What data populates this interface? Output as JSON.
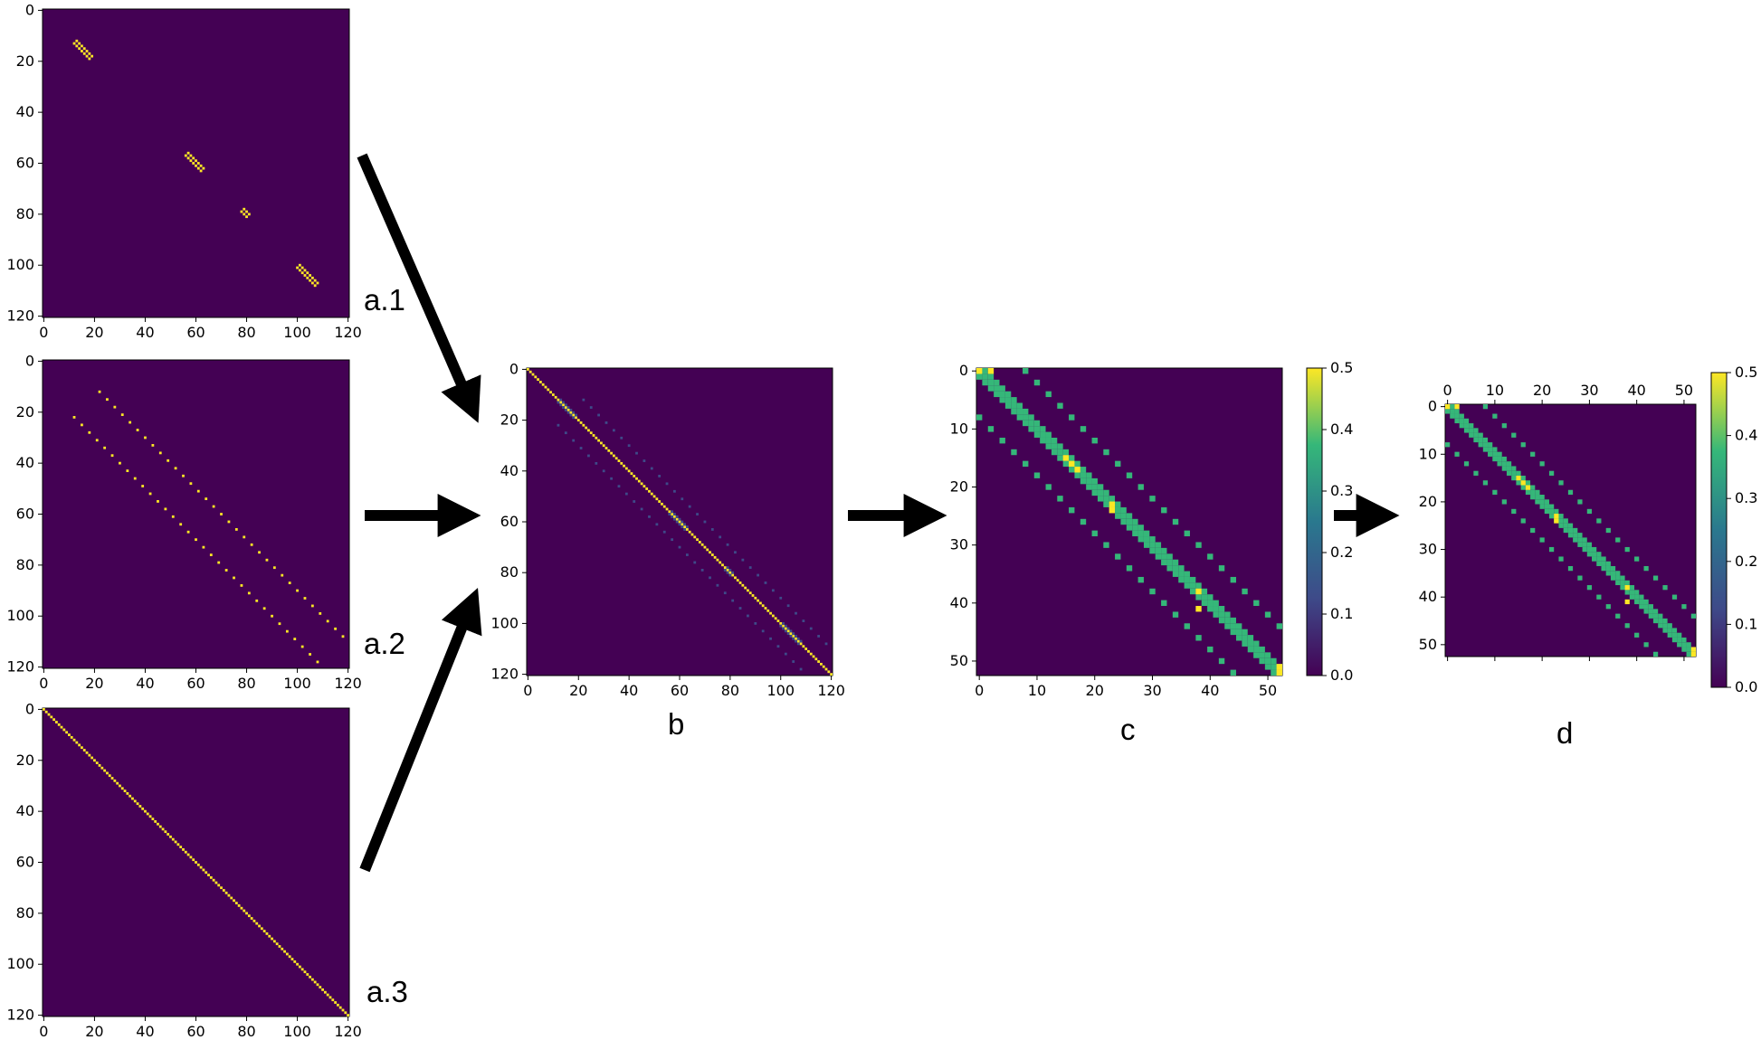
{
  "colormap": {
    "background": "#440154",
    "low": "#3e4a89",
    "mid": "#2a788e",
    "green": "#35b779",
    "high": "#fde725"
  },
  "arrow_color": "#000000",
  "colorbar": {
    "ticks": [
      "0.0",
      "0.1",
      "0.2",
      "0.3",
      "0.4",
      "0.5"
    ],
    "range": [
      0,
      0.5
    ]
  },
  "panels": [
    {
      "id": "a1",
      "label": "a.1",
      "n": 121,
      "tick_step": 20,
      "x_ticks": [
        "0",
        "20",
        "40",
        "60",
        "80",
        "100",
        "120"
      ],
      "y_ticks": [
        "0",
        "20",
        "40",
        "60",
        "80",
        "100",
        "120"
      ],
      "x_axis_position": "bottom",
      "colorbar": false,
      "pattern": "diagonal blocks near indices 12-19, 56-63, 78-81, 100-108 (value 0.5)"
    },
    {
      "id": "a2",
      "label": "a.2",
      "n": 121,
      "tick_step": 20,
      "x_ticks": [
        "0",
        "20",
        "40",
        "60",
        "80",
        "100",
        "120"
      ],
      "y_ticks": [
        "0",
        "20",
        "40",
        "60",
        "80",
        "100",
        "120"
      ],
      "x_axis_position": "bottom",
      "colorbar": false,
      "pattern": "two sparse off-diagonal bands at offset ~10 (value 0.5)"
    },
    {
      "id": "a3",
      "label": "a.3",
      "n": 121,
      "tick_step": 20,
      "x_ticks": [
        "0",
        "20",
        "40",
        "60",
        "80",
        "100",
        "120"
      ],
      "y_ticks": [
        "0",
        "20",
        "40",
        "60",
        "80",
        "100",
        "120"
      ],
      "x_axis_position": "bottom",
      "colorbar": false,
      "pattern": "identity diagonal (value 0.5)"
    },
    {
      "id": "b",
      "label": "b",
      "n": 121,
      "tick_step": 20,
      "x_ticks": [
        "0",
        "20",
        "40",
        "60",
        "80",
        "100",
        "120"
      ],
      "y_ticks": [
        "0",
        "20",
        "40",
        "60",
        "80",
        "100",
        "120"
      ],
      "x_axis_position": "bottom",
      "colorbar": false,
      "pattern": "sum of a.1, a.2 and a.3"
    },
    {
      "id": "c",
      "label": "c",
      "n": 53,
      "tick_step": 10,
      "x_ticks": [
        "0",
        "10",
        "20",
        "30",
        "40",
        "50"
      ],
      "y_ticks": [
        "0",
        "10",
        "20",
        "30",
        "40",
        "50"
      ],
      "x_axis_position": "bottom",
      "colorbar": true,
      "pattern": "coarsened 53x53 band matrix"
    },
    {
      "id": "d",
      "label": "d",
      "n": 53,
      "tick_step": 10,
      "x_ticks": [
        "0",
        "10",
        "20",
        "30",
        "40",
        "50"
      ],
      "y_ticks": [
        "0",
        "10",
        "20",
        "30",
        "40",
        "50"
      ],
      "x_axis_position": "top",
      "colorbar": true,
      "pattern": "symmetric 53x53 band matrix"
    }
  ]
}
